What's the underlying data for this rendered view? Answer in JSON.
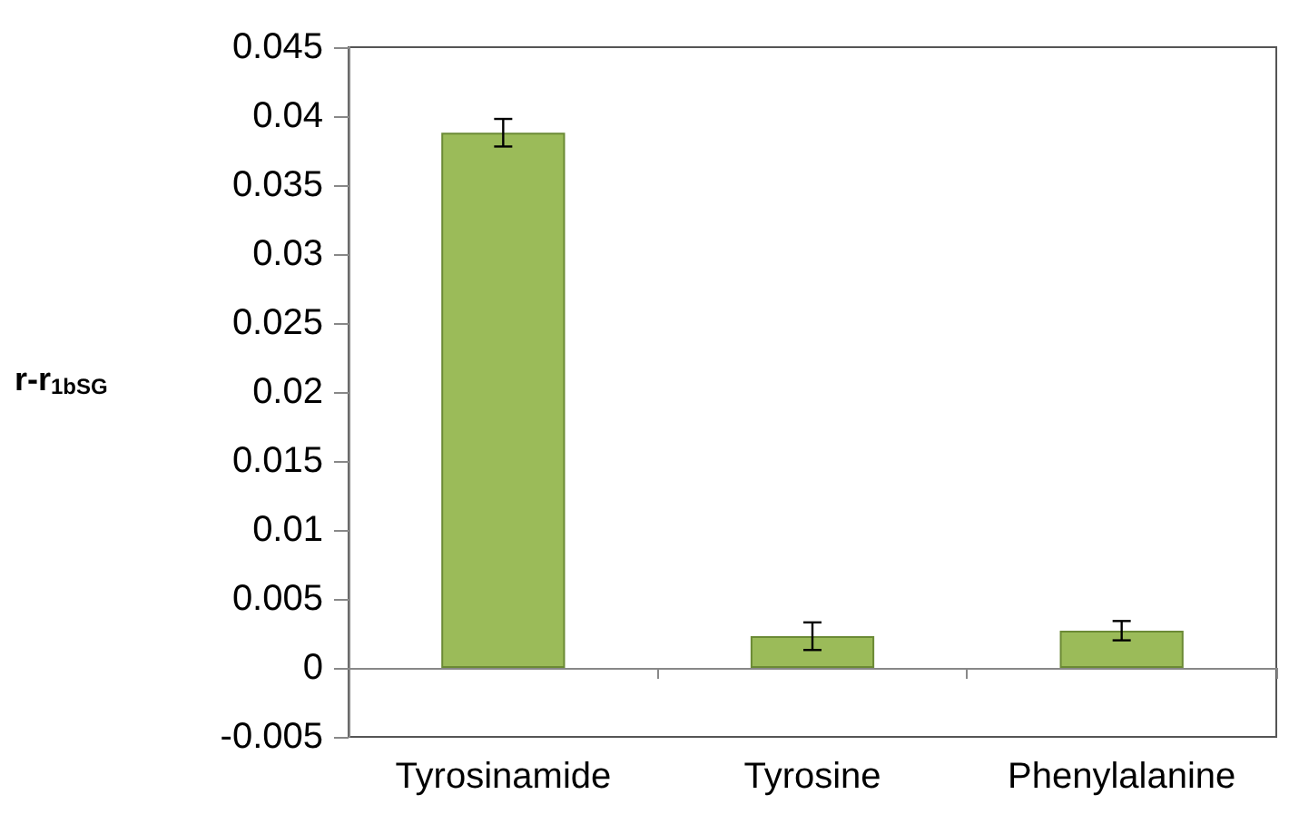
{
  "chart_data": {
    "type": "bar",
    "ylabel": "r-r$_{1bSG}$",
    "categories": [
      "Tyrosinamide",
      "Tyrosine",
      "Phenylalanine"
    ],
    "values": [
      0.0388,
      0.0023,
      0.0027
    ],
    "errors": [
      0.001,
      0.001,
      0.0007
    ],
    "color": "#9bbb59",
    "ylim": [
      -0.005,
      0.045
    ],
    "yticks": [
      -0.005,
      0,
      0.005,
      0.01,
      0.015,
      0.02,
      0.025,
      0.03,
      0.035,
      0.04,
      0.045
    ]
  }
}
